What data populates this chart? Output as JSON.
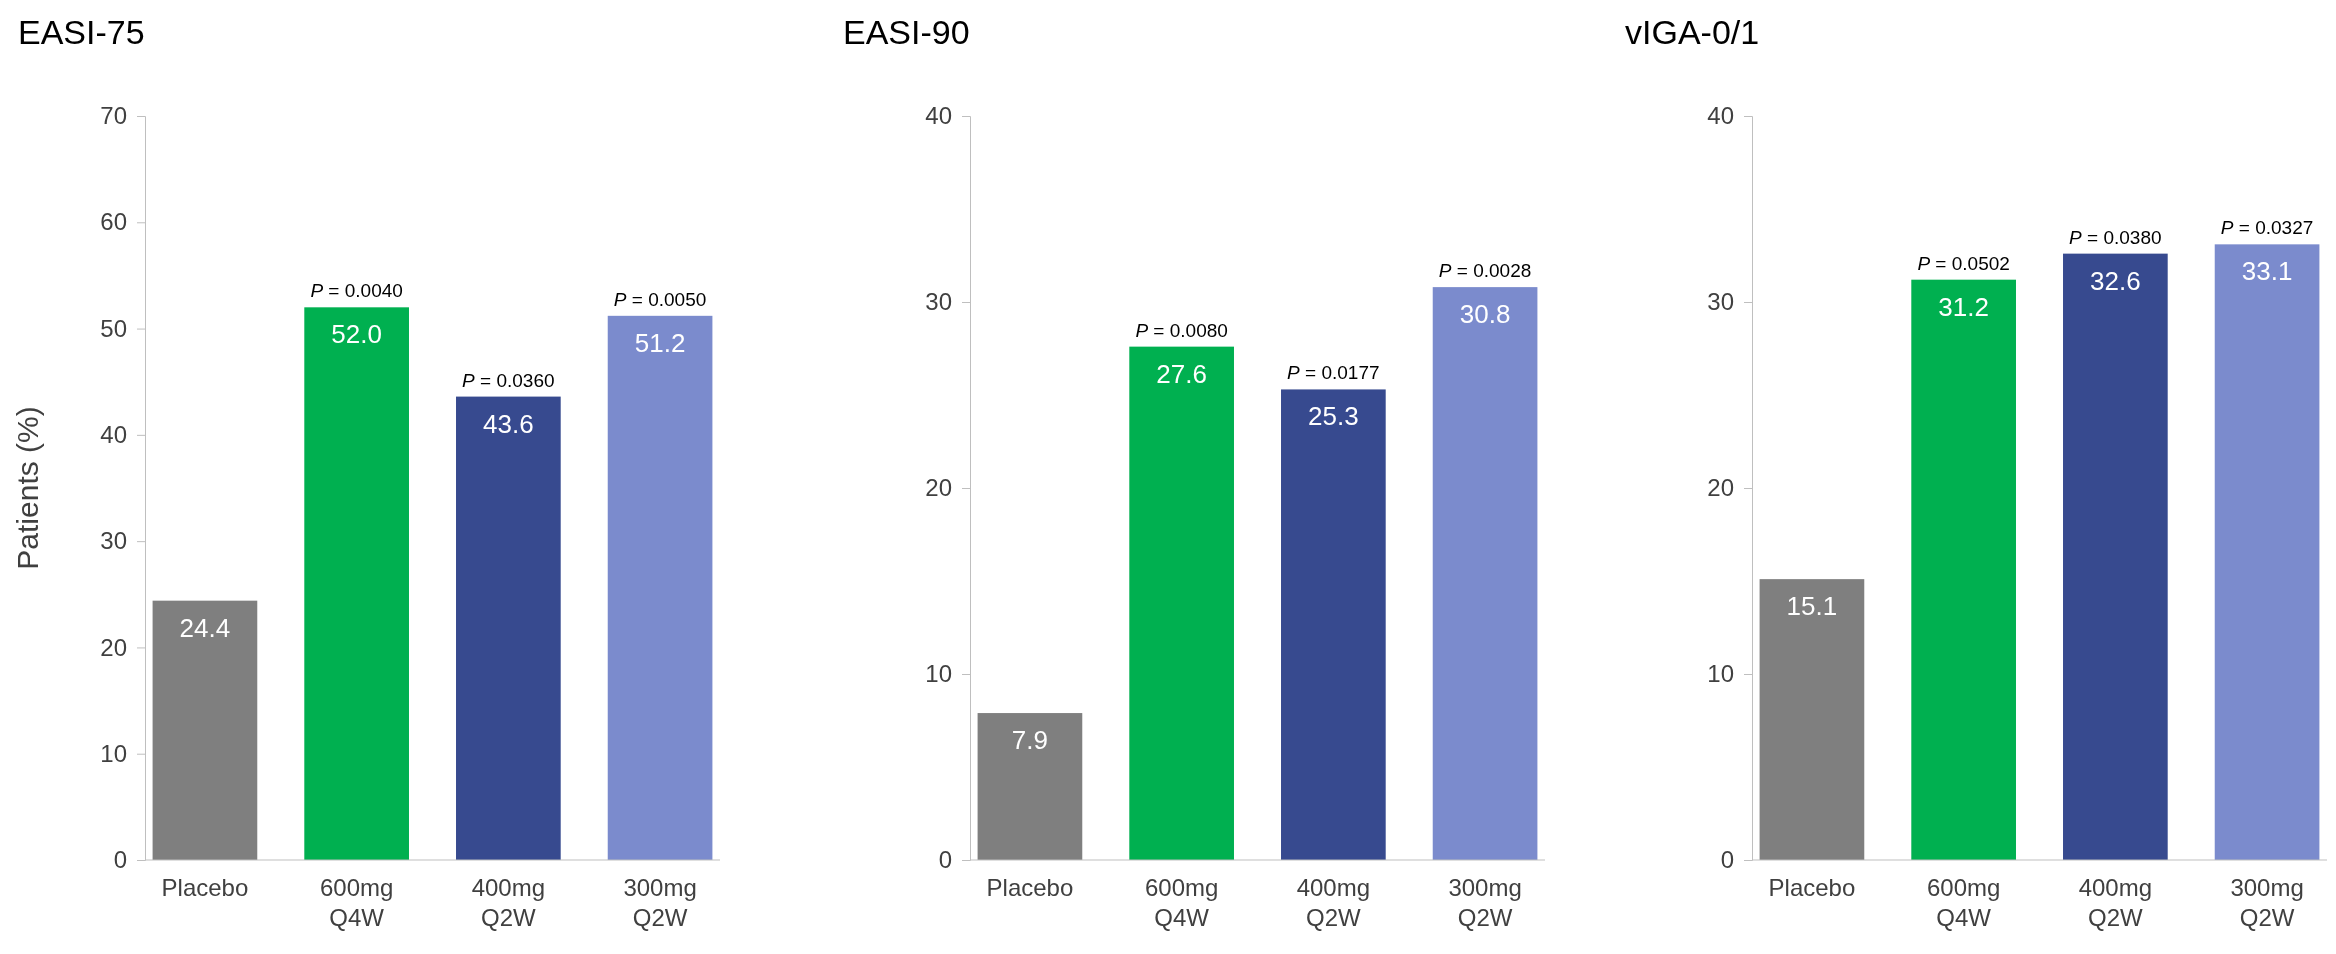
{
  "chart_data": [
    {
      "type": "bar",
      "title": "EASI-75",
      "ylabel": "Patients (%)",
      "categories": [
        "Placebo",
        "600mg Q4W",
        "400mg Q2W",
        "300mg Q2W"
      ],
      "values": [
        24.4,
        52.0,
        43.6,
        51.2
      ],
      "value_labels": [
        "24.4",
        "52.0",
        "43.6",
        "51.2"
      ],
      "colors": [
        "#7f7f7f",
        "#00b050",
        "#374a8f",
        "#7b8bcd"
      ],
      "ylim": [
        0,
        70
      ],
      "yticks": [
        0,
        10,
        20,
        30,
        40,
        50,
        60,
        70
      ],
      "annotations": [
        {
          "text": "P = 0.0040",
          "x": "600mg Q4W",
          "y": 52.0
        },
        {
          "text": "P = 0.0360",
          "x": "400mg Q2W",
          "y": 43.6
        },
        {
          "text": "P = 0.0050",
          "x": "300mg Q2W",
          "y": 51.2
        }
      ]
    },
    {
      "type": "bar",
      "title": "EASI-90",
      "categories": [
        "Placebo",
        "600mg Q4W",
        "400mg Q2W",
        "300mg Q2W"
      ],
      "values": [
        7.9,
        27.6,
        25.3,
        30.8
      ],
      "value_labels": [
        "7.9",
        "27.6",
        "25.3",
        "30.8"
      ],
      "colors": [
        "#7f7f7f",
        "#00b050",
        "#374a8f",
        "#7b8bcd"
      ],
      "ylim": [
        0,
        40
      ],
      "yticks": [
        0,
        10,
        20,
        30,
        40
      ],
      "annotations": [
        {
          "text": "P = 0.0080",
          "x": "600mg Q4W",
          "y": 27.6
        },
        {
          "text": "P = 0.0177",
          "x": "400mg Q2W",
          "y": 25.3
        },
        {
          "text": "P = 0.0028",
          "x": "300mg Q2W",
          "y": 30.8
        }
      ]
    },
    {
      "type": "bar",
      "title": "vIGA-0/1",
      "categories": [
        "Placebo",
        "600mg Q4W",
        "400mg Q2W",
        "300mg Q2W"
      ],
      "values": [
        15.1,
        31.2,
        32.6,
        33.1
      ],
      "value_labels": [
        "15.1",
        "31.2",
        "32.6",
        "33.1"
      ],
      "colors": [
        "#7f7f7f",
        "#00b050",
        "#374a8f",
        "#7b8bcd"
      ],
      "ylim": [
        0,
        40
      ],
      "yticks": [
        0,
        10,
        20,
        30,
        40
      ],
      "annotations": [
        {
          "text": "P = 0.0502",
          "x": "600mg Q4W",
          "y": 31.2
        },
        {
          "text": "P = 0.0380",
          "x": "400mg Q2W",
          "y": 32.6
        },
        {
          "text": "P = 0.0327",
          "x": "300mg Q2W",
          "y": 33.1
        }
      ]
    }
  ]
}
